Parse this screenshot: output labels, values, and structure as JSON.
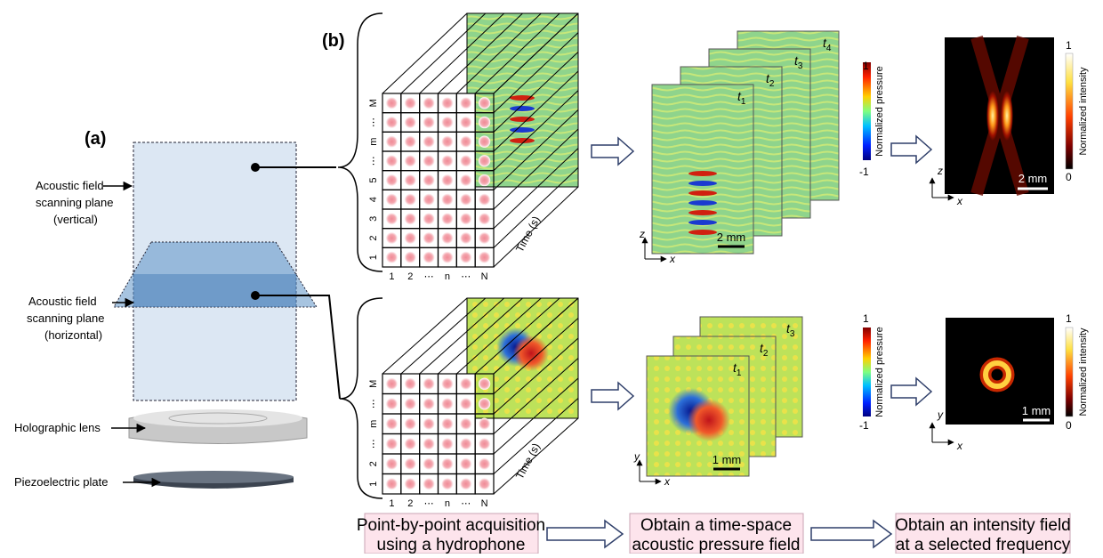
{
  "panel_a": {
    "label": "(a)",
    "vertical_plane": [
      "Acoustic field",
      "scanning plane",
      "(vertical)"
    ],
    "horizontal_plane": [
      "Acoustic field",
      "scanning plane",
      "(horizontal)"
    ],
    "lens": "Holographic lens",
    "plate": "Piezoelectric plate"
  },
  "panel_b": {
    "label": "(b)",
    "time_axis": "Time (s)",
    "frame_symbol": "t",
    "pressure_bar": {
      "label": "Normalized pressure",
      "max": "1",
      "min": "-1"
    },
    "intensity_bar": {
      "label": "Normalized intensity",
      "max": "1",
      "min": "0"
    },
    "rows": [
      {
        "row_labels": [
          "1",
          "2",
          "3",
          "4",
          "5",
          "⋯",
          "m",
          "⋯",
          "M"
        ],
        "col_labels": [
          "1",
          "2",
          "⋯",
          "n",
          "⋯",
          "N"
        ],
        "frames": [
          "1",
          "2",
          "3",
          "4"
        ],
        "axes": [
          "z",
          "x"
        ],
        "pressure_scale": "2 mm",
        "intensity_scale": "2 mm"
      },
      {
        "row_labels": [
          "1",
          "2",
          "⋯",
          "m",
          "⋯",
          "M"
        ],
        "col_labels": [
          "1",
          "2",
          "⋯",
          "n",
          "⋯",
          "N"
        ],
        "frames": [
          "1",
          "2",
          "3"
        ],
        "axes": [
          "y",
          "x"
        ],
        "pressure_scale": "1 mm",
        "intensity_scale": "1 mm"
      }
    ]
  },
  "steps": [
    [
      "Point-by-point acquisition",
      "using a hydrophone"
    ],
    [
      "Obtain a time-space",
      "acoustic pressure field"
    ],
    [
      "Obtain an intensity field",
      "at a selected frequency"
    ]
  ]
}
